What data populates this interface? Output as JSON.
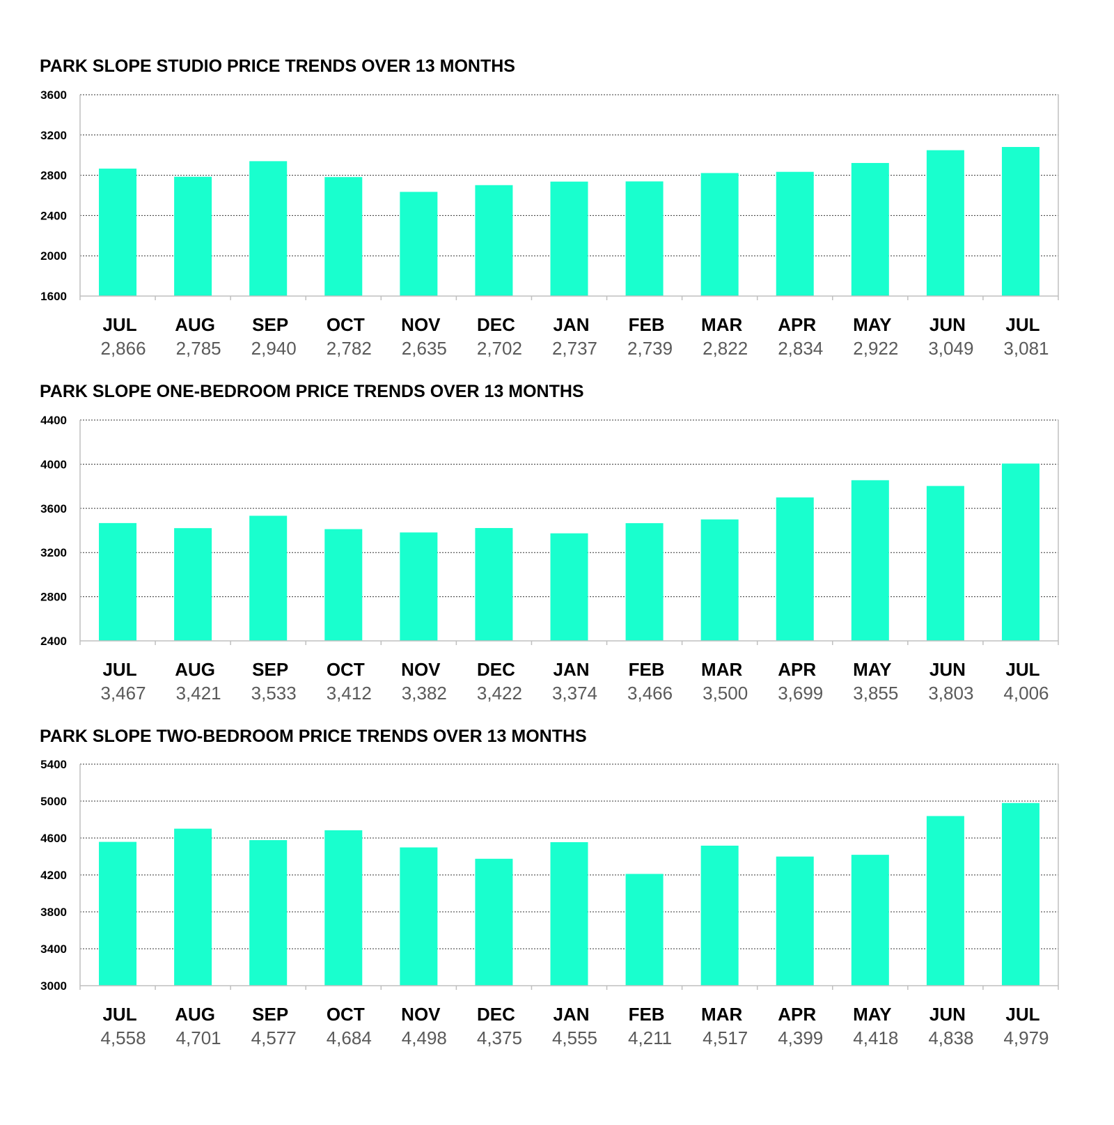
{
  "colors": {
    "bar": "#19ffce",
    "grid": "#333333",
    "axis": "#bfbfbf"
  },
  "chart_data": [
    {
      "type": "bar",
      "title": "PARK SLOPE STUDIO PRICE TRENDS OVER 13 MONTHS",
      "categories": [
        "JUL",
        "AUG",
        "SEP",
        "OCT",
        "NOV",
        "DEC",
        "JAN",
        "FEB",
        "MAR",
        "APR",
        "MAY",
        "JUN",
        "JUL"
      ],
      "values": [
        2866,
        2785,
        2940,
        2782,
        2635,
        2702,
        2737,
        2739,
        2822,
        2834,
        2922,
        3049,
        3081
      ],
      "value_labels": [
        "2,866",
        "2,785",
        "2,940",
        "2,782",
        "2,635",
        "2,702",
        "2,737",
        "2,739",
        "2,822",
        "2,834",
        "2,922",
        "3,049",
        "3,081"
      ],
      "ylim": [
        1600,
        3600
      ],
      "yticks": [
        "1600",
        "2000",
        "2400",
        "2800",
        "3200",
        "3600"
      ],
      "grid": true
    },
    {
      "type": "bar",
      "title": "PARK SLOPE ONE-BEDROOM PRICE TRENDS OVER 13 MONTHS",
      "categories": [
        "JUL",
        "AUG",
        "SEP",
        "OCT",
        "NOV",
        "DEC",
        "JAN",
        "FEB",
        "MAR",
        "APR",
        "MAY",
        "JUN",
        "JUL"
      ],
      "values": [
        3467,
        3421,
        3533,
        3412,
        3382,
        3422,
        3374,
        3466,
        3500,
        3699,
        3855,
        3803,
        4006
      ],
      "value_labels": [
        "3,467",
        "3,421",
        "3,533",
        "3,412",
        "3,382",
        "3,422",
        "3,374",
        "3,466",
        "3,500",
        "3,699",
        "3,855",
        "3,803",
        "4,006"
      ],
      "ylim": [
        2400,
        4400
      ],
      "yticks": [
        "2400",
        "2800",
        "3200",
        "3600",
        "4000",
        "4400"
      ],
      "grid": true
    },
    {
      "type": "bar",
      "title": "PARK SLOPE TWO-BEDROOM PRICE TRENDS OVER 13 MONTHS",
      "categories": [
        "JUL",
        "AUG",
        "SEP",
        "OCT",
        "NOV",
        "DEC",
        "JAN",
        "FEB",
        "MAR",
        "APR",
        "MAY",
        "JUN",
        "JUL"
      ],
      "values": [
        4558,
        4701,
        4577,
        4684,
        4498,
        4375,
        4555,
        4211,
        4517,
        4399,
        4418,
        4838,
        4979
      ],
      "value_labels": [
        "4,558",
        "4,701",
        "4,577",
        "4,684",
        "4,498",
        "4,375",
        "4,555",
        "4,211",
        "4,517",
        "4,399",
        "4,418",
        "4,838",
        "4,979"
      ],
      "ylim": [
        3000,
        5400
      ],
      "yticks": [
        "3000",
        "3400",
        "3800",
        "4200",
        "4600",
        "5000",
        "5400"
      ],
      "grid": true
    }
  ]
}
